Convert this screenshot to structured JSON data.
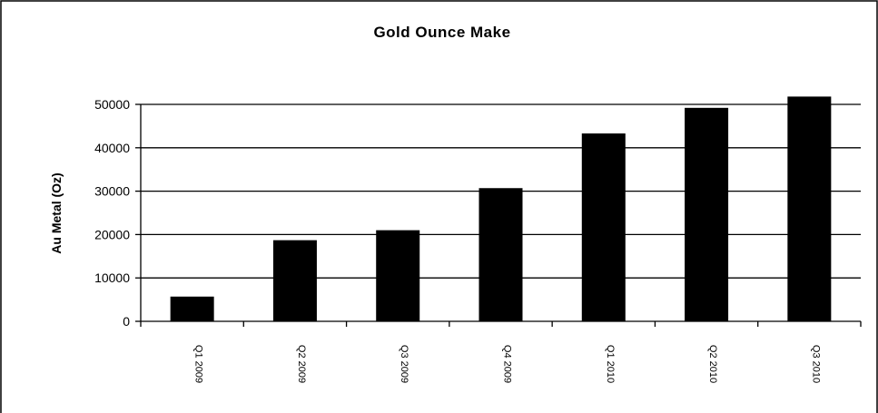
{
  "chart_data": {
    "type": "bar",
    "title": "Gold Ounce Make",
    "ylabel": "Au Metal (Oz)",
    "xlabel": "",
    "categories": [
      "Q1 2009",
      "Q2 2009",
      "Q3 2009",
      "Q4 2009",
      "Q1 2010",
      "Q2 2010",
      "Q3 2010"
    ],
    "values": [
      5700,
      18700,
      21000,
      30700,
      43300,
      49200,
      51800
    ],
    "ylim": [
      0,
      50000
    ],
    "yticks": [
      0,
      10000,
      20000,
      30000,
      40000,
      50000
    ],
    "grid": true,
    "bar_color": "#000000",
    "legend": "none"
  }
}
